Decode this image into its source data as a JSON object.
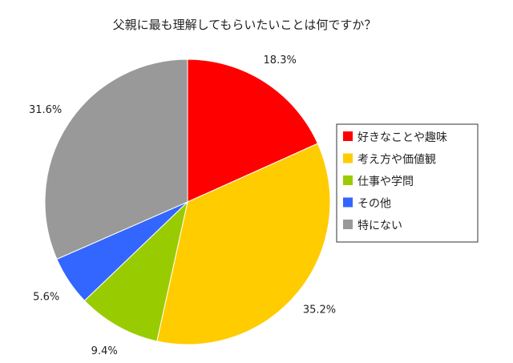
{
  "chart_data": {
    "type": "pie",
    "title": "父親に最も理解してもらいたいことは何ですか？",
    "legend_position": "right",
    "slices": [
      {
        "label": "好きなことや趣味",
        "value": 18.3,
        "value_label": "18.3%",
        "color": "#ff0000"
      },
      {
        "label": "考え方や価値観",
        "value": 35.2,
        "value_label": "35.2%",
        "color": "#ffcc00"
      },
      {
        "label": "仕事や学問",
        "value": 9.4,
        "value_label": "9.4%",
        "color": "#99cc00"
      },
      {
        "label": "その他",
        "value": 5.6,
        "value_label": "5.6%",
        "color": "#3366ff"
      },
      {
        "label": "特にない",
        "value": 31.6,
        "value_label": "31.6%",
        "color": "#999999"
      }
    ]
  }
}
